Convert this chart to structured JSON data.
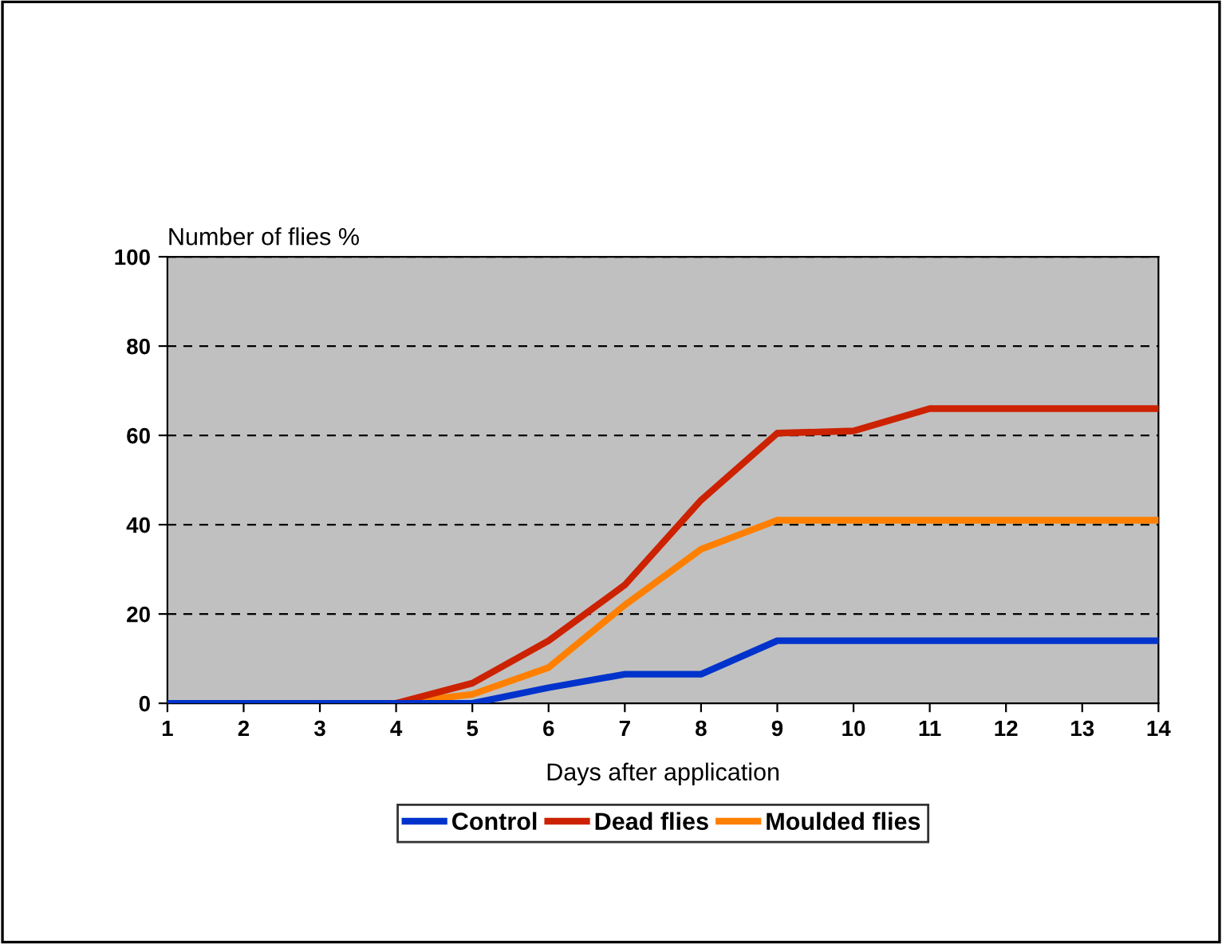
{
  "chart_data": {
    "type": "line",
    "ylabel": "Number of flies %",
    "xlabel": "Days after application",
    "x": [
      1,
      2,
      3,
      4,
      5,
      6,
      7,
      8,
      9,
      10,
      11,
      12,
      13,
      14
    ],
    "series": [
      {
        "name": "Control",
        "color": "#0033cc",
        "values": [
          0,
          0,
          0,
          0,
          0,
          3.5,
          6.5,
          6.5,
          14,
          14,
          14,
          14,
          14,
          14
        ]
      },
      {
        "name": "Dead flies",
        "color": "#cc2200",
        "values": [
          null,
          null,
          null,
          0,
          4.5,
          14,
          26.5,
          45.5,
          60.5,
          61,
          66,
          66,
          66,
          66
        ]
      },
      {
        "name": "Moulded flies",
        "color": "#ff8000",
        "values": [
          null,
          null,
          null,
          0,
          2,
          8,
          22,
          34.5,
          41,
          41,
          41,
          41,
          41,
          41
        ]
      }
    ],
    "xlim": [
      1,
      14
    ],
    "xticks": [
      1,
      2,
      3,
      4,
      5,
      6,
      7,
      8,
      9,
      10,
      11,
      12,
      13,
      14
    ],
    "ylim": [
      0,
      100
    ],
    "yticks": [
      0,
      20,
      40,
      60,
      80,
      100
    ],
    "grid": "y",
    "line_style": "solid",
    "marker": "none",
    "legend": "bottom"
  }
}
